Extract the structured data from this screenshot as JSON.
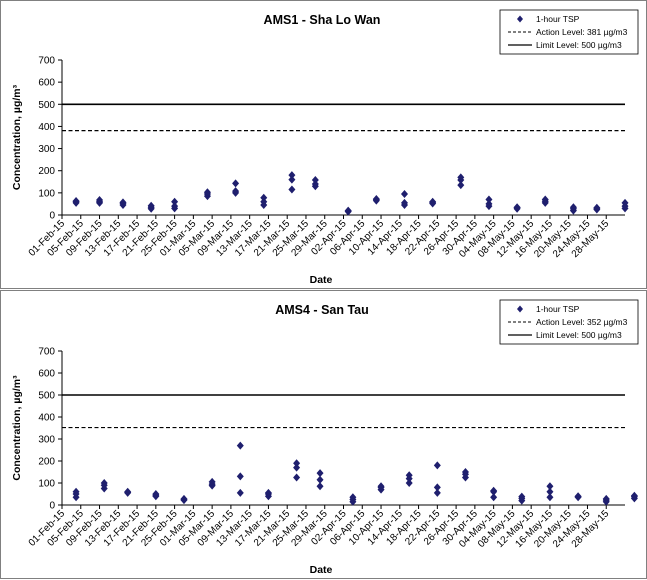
{
  "chart_data": [
    {
      "type": "scatter",
      "title": "AMS1 - Sha Lo Wan",
      "xlabel": "Date",
      "ylabel": "Concentration, µg/m³",
      "ylim": [
        0,
        700
      ],
      "yticks": [
        "0",
        "100",
        "200",
        "300",
        "400",
        "500",
        "600",
        "700"
      ],
      "xticks": [
        "01-Feb-15",
        "05-Feb-15",
        "09-Feb-15",
        "13-Feb-15",
        "17-Feb-15",
        "21-Feb-15",
        "25-Feb-15",
        "01-Mar-15",
        "05-Mar-15",
        "09-Mar-15",
        "13-Mar-15",
        "17-Mar-15",
        "21-Mar-15",
        "25-Mar-15",
        "29-Mar-15",
        "02-Apr-15",
        "06-Apr-15",
        "10-Apr-15",
        "14-Apr-15",
        "18-Apr-15",
        "22-Apr-15",
        "26-Apr-15",
        "30-Apr-15",
        "04-May-15",
        "08-May-15",
        "12-May-15",
        "16-May-15",
        "20-May-15",
        "24-May-15",
        "28-May-15"
      ],
      "legend": {
        "position": "top-right",
        "series_label": "1-hour TSP",
        "action_label": "Action Level: 381 µg/m3",
        "limit_label": "Limit Level: 500 µg/m3"
      },
      "action_level": 381,
      "limit_level": 500,
      "series": [
        {
          "name": "1-hour TSP",
          "points": [
            [
              "04-Feb-15",
              55
            ],
            [
              "04-Feb-15",
              60
            ],
            [
              "04-Feb-15",
              63
            ],
            [
              "09-Feb-15",
              55
            ],
            [
              "09-Feb-15",
              60
            ],
            [
              "09-Feb-15",
              68
            ],
            [
              "14-Feb-15",
              45
            ],
            [
              "14-Feb-15",
              53
            ],
            [
              "14-Feb-15",
              57
            ],
            [
              "20-Feb-15",
              28
            ],
            [
              "20-Feb-15",
              35
            ],
            [
              "20-Feb-15",
              42
            ],
            [
              "25-Feb-15",
              30
            ],
            [
              "25-Feb-15",
              40
            ],
            [
              "25-Feb-15",
              60
            ],
            [
              "04-Mar-15",
              85
            ],
            [
              "04-Mar-15",
              95
            ],
            [
              "04-Mar-15",
              103
            ],
            [
              "10-Mar-15",
              100
            ],
            [
              "10-Mar-15",
              108
            ],
            [
              "10-Mar-15",
              143
            ],
            [
              "16-Mar-15",
              45
            ],
            [
              "16-Mar-15",
              60
            ],
            [
              "16-Mar-15",
              78
            ],
            [
              "22-Mar-15",
              115
            ],
            [
              "22-Mar-15",
              160
            ],
            [
              "22-Mar-15",
              180
            ],
            [
              "27-Mar-15",
              130
            ],
            [
              "27-Mar-15",
              140
            ],
            [
              "27-Mar-15",
              158
            ],
            [
              "03-Apr-15",
              15
            ],
            [
              "03-Apr-15",
              18
            ],
            [
              "03-Apr-15",
              20
            ],
            [
              "09-Apr-15",
              65
            ],
            [
              "09-Apr-15",
              70
            ],
            [
              "09-Apr-15",
              72
            ],
            [
              "15-Apr-15",
              45
            ],
            [
              "15-Apr-15",
              55
            ],
            [
              "15-Apr-15",
              95
            ],
            [
              "21-Apr-15",
              52
            ],
            [
              "21-Apr-15",
              57
            ],
            [
              "21-Apr-15",
              60
            ],
            [
              "27-Apr-15",
              135
            ],
            [
              "27-Apr-15",
              158
            ],
            [
              "27-Apr-15",
              170
            ],
            [
              "03-May-15",
              40
            ],
            [
              "03-May-15",
              50
            ],
            [
              "03-May-15",
              70
            ],
            [
              "09-May-15",
              28
            ],
            [
              "09-May-15",
              33
            ],
            [
              "09-May-15",
              35
            ],
            [
              "15-May-15",
              55
            ],
            [
              "15-May-15",
              62
            ],
            [
              "15-May-15",
              70
            ],
            [
              "21-May-15",
              20
            ],
            [
              "21-May-15",
              28
            ],
            [
              "21-May-15",
              35
            ],
            [
              "26-May-15",
              25
            ],
            [
              "26-May-15",
              30
            ],
            [
              "26-May-15",
              33
            ],
            [
              "01-Jun-15",
              30
            ],
            [
              "01-Jun-15",
              40
            ],
            [
              "01-Jun-15",
              55
            ]
          ]
        }
      ]
    },
    {
      "type": "scatter",
      "title": "AMS4 - San Tau",
      "xlabel": "Date",
      "ylabel": "Concentration, µg/m³",
      "ylim": [
        0,
        700
      ],
      "yticks": [
        "0",
        "100",
        "200",
        "300",
        "400",
        "500",
        "600",
        "700"
      ],
      "xticks": [
        "01-Feb-15",
        "05-Feb-15",
        "09-Feb-15",
        "13-Feb-15",
        "17-Feb-15",
        "21-Feb-15",
        "25-Feb-15",
        "01-Mar-15",
        "05-Mar-15",
        "09-Mar-15",
        "13-Mar-15",
        "17-Mar-15",
        "21-Mar-15",
        "25-Mar-15",
        "29-Mar-15",
        "02-Apr-15",
        "06-Apr-15",
        "10-Apr-15",
        "14-Apr-15",
        "18-Apr-15",
        "22-Apr-15",
        "26-Apr-15",
        "30-Apr-15",
        "04-May-15",
        "08-May-15",
        "12-May-15",
        "16-May-15",
        "20-May-15",
        "24-May-15",
        "28-May-15"
      ],
      "legend": {
        "position": "top-right",
        "series_label": "1-hour TSP",
        "action_label": "Action Level: 352 µg/m3",
        "limit_label": "Limit Level: 500 µg/m3"
      },
      "action_level": 352,
      "limit_level": 500,
      "series": [
        {
          "name": "1-hour TSP",
          "points": [
            [
              "04-Feb-15",
              35
            ],
            [
              "04-Feb-15",
              50
            ],
            [
              "04-Feb-15",
              60
            ],
            [
              "10-Feb-15",
              75
            ],
            [
              "10-Feb-15",
              90
            ],
            [
              "10-Feb-15",
              100
            ],
            [
              "15-Feb-15",
              55
            ],
            [
              "15-Feb-15",
              58
            ],
            [
              "15-Feb-15",
              60
            ],
            [
              "21-Feb-15",
              40
            ],
            [
              "21-Feb-15",
              45
            ],
            [
              "21-Feb-15",
              50
            ],
            [
              "27-Feb-15",
              22
            ],
            [
              "27-Feb-15",
              25
            ],
            [
              "27-Feb-15",
              28
            ],
            [
              "05-Mar-15",
              88
            ],
            [
              "05-Mar-15",
              95
            ],
            [
              "05-Mar-15",
              105
            ],
            [
              "11-Mar-15",
              55
            ],
            [
              "11-Mar-15",
              130
            ],
            [
              "11-Mar-15",
              270
            ],
            [
              "17-Mar-15",
              40
            ],
            [
              "17-Mar-15",
              50
            ],
            [
              "17-Mar-15",
              55
            ],
            [
              "23-Mar-15",
              125
            ],
            [
              "23-Mar-15",
              170
            ],
            [
              "23-Mar-15",
              190
            ],
            [
              "28-Mar-15",
              85
            ],
            [
              "28-Mar-15",
              115
            ],
            [
              "28-Mar-15",
              145
            ],
            [
              "04-Apr-15",
              15
            ],
            [
              "04-Apr-15",
              25
            ],
            [
              "04-Apr-15",
              35
            ],
            [
              "10-Apr-15",
              70
            ],
            [
              "10-Apr-15",
              80
            ],
            [
              "10-Apr-15",
              85
            ],
            [
              "16-Apr-15",
              100
            ],
            [
              "16-Apr-15",
              120
            ],
            [
              "16-Apr-15",
              135
            ],
            [
              "22-Apr-15",
              55
            ],
            [
              "22-Apr-15",
              80
            ],
            [
              "22-Apr-15",
              180
            ],
            [
              "28-Apr-15",
              125
            ],
            [
              "28-Apr-15",
              140
            ],
            [
              "28-Apr-15",
              150
            ],
            [
              "04-May-15",
              35
            ],
            [
              "04-May-15",
              60
            ],
            [
              "04-May-15",
              65
            ],
            [
              "10-May-15",
              20
            ],
            [
              "10-May-15",
              30
            ],
            [
              "10-May-15",
              38
            ],
            [
              "16-May-15",
              35
            ],
            [
              "16-May-15",
              60
            ],
            [
              "16-May-15",
              85
            ],
            [
              "22-May-15",
              35
            ],
            [
              "22-May-15",
              38
            ],
            [
              "22-May-15",
              40
            ],
            [
              "28-May-15",
              15
            ],
            [
              "28-May-15",
              22
            ],
            [
              "28-May-15",
              28
            ],
            [
              "03-Jun-15",
              30
            ],
            [
              "03-Jun-15",
              38
            ],
            [
              "03-Jun-15",
              42
            ]
          ]
        }
      ]
    }
  ]
}
